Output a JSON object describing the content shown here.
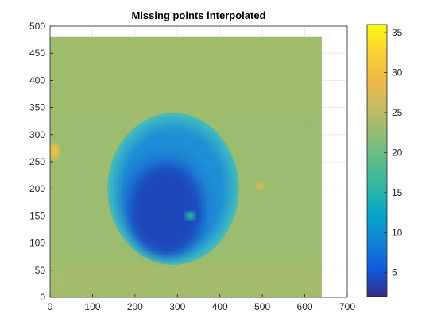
{
  "chart_data": {
    "type": "heatmap",
    "title": "Missing points interpolated",
    "xlabel": "",
    "ylabel": "",
    "xlim": [
      0,
      700
    ],
    "ylim": [
      0,
      500
    ],
    "x_ticks": [
      0,
      100,
      200,
      300,
      400,
      500,
      600,
      700
    ],
    "y_ticks": [
      0,
      50,
      100,
      150,
      200,
      250,
      300,
      350,
      400,
      450,
      500
    ],
    "grid": true,
    "image_extent": {
      "x": [
        0,
        640
      ],
      "y": [
        0,
        480
      ]
    },
    "colormap": "parula",
    "colorbar": {
      "range": [
        2,
        36
      ],
      "ticks": [
        5,
        10,
        15,
        20,
        25,
        30,
        35
      ],
      "placement": "right"
    },
    "background_value": 23,
    "regions": [
      {
        "name": "ellipse-rim",
        "cx": 290,
        "cy": 200,
        "rx": 155,
        "ry": 140,
        "value": 17
      },
      {
        "name": "ellipse-core",
        "cx": 280,
        "cy": 185,
        "rx": 115,
        "ry": 112,
        "value": 8
      },
      {
        "name": "ellipse-deep",
        "cx": 275,
        "cy": 160,
        "rx": 80,
        "ry": 80,
        "value": 4
      },
      {
        "name": "hot-spot-left",
        "cx": 10,
        "cy": 270,
        "rx": 12,
        "ry": 14,
        "value": 30
      },
      {
        "name": "hot-spot-right",
        "cx": 495,
        "cy": 205,
        "rx": 10,
        "ry": 6,
        "value": 28
      },
      {
        "name": "inner-spot",
        "cx": 330,
        "cy": 150,
        "rx": 12,
        "ry": 8,
        "value": 15
      }
    ]
  }
}
